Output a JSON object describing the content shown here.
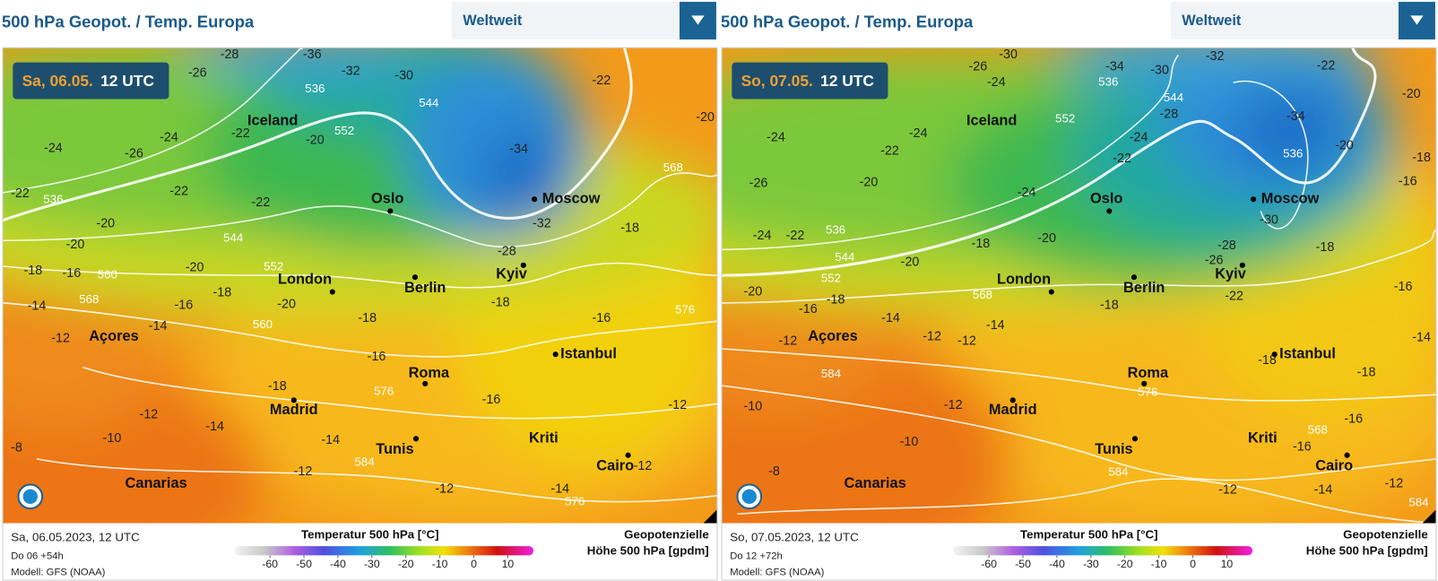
{
  "panels": [
    {
      "title": "500 hPa Geopot. / Temp. Europa",
      "dropdown": "Weltweit",
      "date": "Sa, 06.05.",
      "time": "12 UTC",
      "cities": [
        "Iceland",
        "Oslo",
        "Moscow",
        "London",
        "Berlin",
        "Kyiv",
        "Açores",
        "Istanbul",
        "Roma",
        "Madrid",
        "Tunis",
        "Kriti",
        "Cairo",
        "Canarias"
      ],
      "temp_labels": [
        -28,
        -36,
        -26,
        -32,
        -30,
        -22,
        -20,
        -24,
        -26,
        -22,
        -20,
        -24,
        -34,
        -22,
        -22,
        -22,
        -20,
        -20,
        -32,
        -28,
        -18,
        -18,
        -16,
        -20,
        -18,
        -16,
        -20,
        -14,
        -18,
        -14,
        -12,
        -16,
        -16,
        -18,
        -12,
        -14,
        -10,
        -8,
        -14,
        -12,
        -12,
        -14,
        -12,
        -12,
        -16,
        -18
      ],
      "height_labels": [
        536,
        544,
        552,
        536,
        544,
        552,
        560,
        568,
        560,
        576,
        584,
        568,
        576,
        576
      ],
      "footer": {
        "run": "Sa, 06.05.2023, 12 UTC",
        "init": "Do 06 +54h",
        "model": "Modell: GFS (NOAA)",
        "legend_title": "Temperatur 500 hPa [°C]",
        "legend_ticks": [
          -60,
          -50,
          -40,
          -30,
          -20,
          -10,
          0,
          10
        ],
        "height_title_1": "Geopotenzielle",
        "height_title_2": "Höhe 500 hPa [gpdm]"
      }
    },
    {
      "title": "500 hPa Geopot. / Temp. Europa",
      "dropdown": "Weltweit",
      "date": "So, 07.05.",
      "time": "12 UTC",
      "cities": [
        "Iceland",
        "Oslo",
        "Moscow",
        "London",
        "Berlin",
        "Kyiv",
        "Açores",
        "Istanbul",
        "Roma",
        "Madrid",
        "Tunis",
        "Kriti",
        "Cairo",
        "Canarias"
      ],
      "temp_labels": [
        -30,
        -34,
        -32,
        -26,
        -24,
        -30,
        -22,
        -20,
        -28,
        -24,
        -22,
        -34,
        -24,
        -24,
        -22,
        -26,
        -20,
        -24,
        -20,
        -18,
        -16,
        -30,
        -24,
        -22,
        -20,
        -18,
        -28,
        -26,
        -18,
        -20,
        -20,
        -16,
        -18,
        -14,
        -22,
        -18,
        -14,
        -12,
        -12,
        -12,
        -18,
        -18,
        -12,
        -10,
        -10,
        -8,
        -12,
        -14,
        -12,
        -16,
        -16,
        -14,
        -16
      ],
      "height_labels": [
        536,
        544,
        552,
        568,
        544,
        536,
        552,
        536,
        584,
        576,
        584,
        568,
        584
      ],
      "footer": {
        "run": "So, 07.05.2023, 12 UTC",
        "init": "Do 12 +72h",
        "model": "Modell: GFS (NOAA)",
        "legend_title": "Temperatur 500 hPa [°C]",
        "legend_ticks": [
          -60,
          -50,
          -40,
          -30,
          -20,
          -10,
          0,
          10
        ],
        "height_title_1": "Geopotenzielle",
        "height_title_2": "Höhe 500 hPa [gpdm]"
      }
    }
  ]
}
